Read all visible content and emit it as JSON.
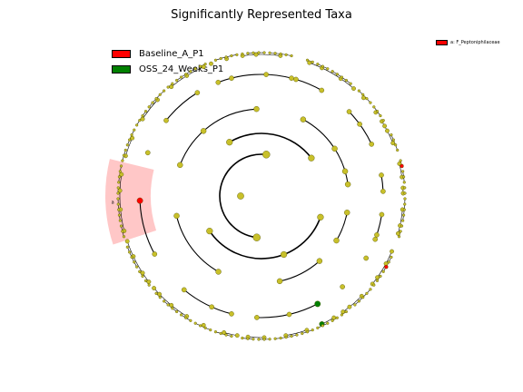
{
  "title": "Significantly Represented Taxa",
  "colors": {
    "node_default": "#c8c02a",
    "node_stroke": "#505000",
    "baseline": "#ff0000",
    "oss": "#008000",
    "edge": "#000000"
  },
  "legend": [
    {
      "label": "Baseline_A_P1",
      "color": "#ff0000"
    },
    {
      "label": "OSS_24_Weeks_P1",
      "color": "#008000"
    }
  ],
  "side_legend": {
    "label": "a: F_Peptoniphilaceae",
    "color": "#ff0000"
  },
  "highlight_label": "a"
}
